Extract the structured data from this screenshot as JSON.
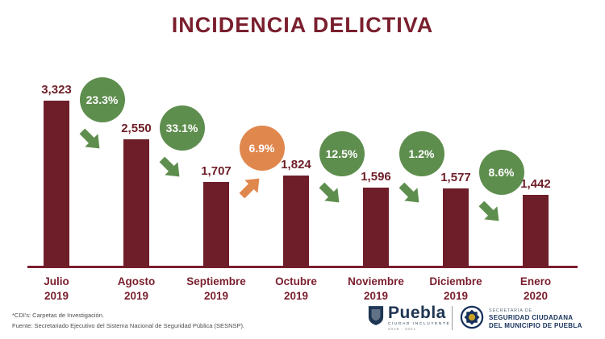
{
  "title": "INCIDENCIA DELICTIVA",
  "chart_data": {
    "type": "bar",
    "title": "INCIDENCIA DELICTIVA",
    "categories": [
      "Julio 2019",
      "Agosto 2019",
      "Septiembre 2019",
      "Octubre 2019",
      "Noviembre 2019",
      "Diciembre 2019",
      "Enero 2020"
    ],
    "month_lines": [
      [
        "Julio",
        "2019"
      ],
      [
        "Agosto",
        "2019"
      ],
      [
        "Septiembre",
        "2019"
      ],
      [
        "Octubre",
        "2019"
      ],
      [
        "Noviembre",
        "2019"
      ],
      [
        "Diciembre",
        "2019"
      ],
      [
        "Enero",
        "2020"
      ]
    ],
    "values": [
      3323,
      2550,
      1707,
      1824,
      1596,
      1577,
      1442
    ],
    "value_labels": [
      "3,323",
      "2,550",
      "1,707",
      "1,824",
      "1,596",
      "1,577",
      "1,442"
    ],
    "changes": [
      {
        "label": "23.3%",
        "direction": "down",
        "color": "#5e8e4e"
      },
      {
        "label": "33.1%",
        "direction": "down",
        "color": "#5e8e4e"
      },
      {
        "label": "6.9%",
        "direction": "up",
        "color": "#e0874e"
      },
      {
        "label": "12.5%",
        "direction": "down",
        "color": "#5e8e4e"
      },
      {
        "label": "1.2%",
        "direction": "down",
        "color": "#5e8e4e"
      },
      {
        "label": "8.6%",
        "direction": "down",
        "color": "#5e8e4e"
      }
    ],
    "xlabel": "",
    "ylabel": "",
    "ylim": [
      0,
      3500
    ],
    "grid": false,
    "legend": "none",
    "bar_color": "#6e1e29"
  },
  "footer": {
    "note1": "*CDI's: Carpetas de Investigación.",
    "note2": "Fuente: Secretariado Ejecutivo del Sistema Nacional de Seguridad Pública (SESNSP).",
    "puebla_logo": {
      "text": "Puebla",
      "subtext": "CIUDAD INCLUYENTE",
      "years": "2019 · 2021"
    },
    "ssc_logo": {
      "line1": "SECRETARÍA DE",
      "line2": "SEGURIDAD CIUDADANA",
      "line3": "DEL MUNICIPIO DE PUEBLA"
    }
  },
  "colors": {
    "maroon": "#7a1f2e",
    "bar": "#6e1e29",
    "green": "#5e8e4e",
    "orange": "#e0874e",
    "background": "#ffffff"
  }
}
